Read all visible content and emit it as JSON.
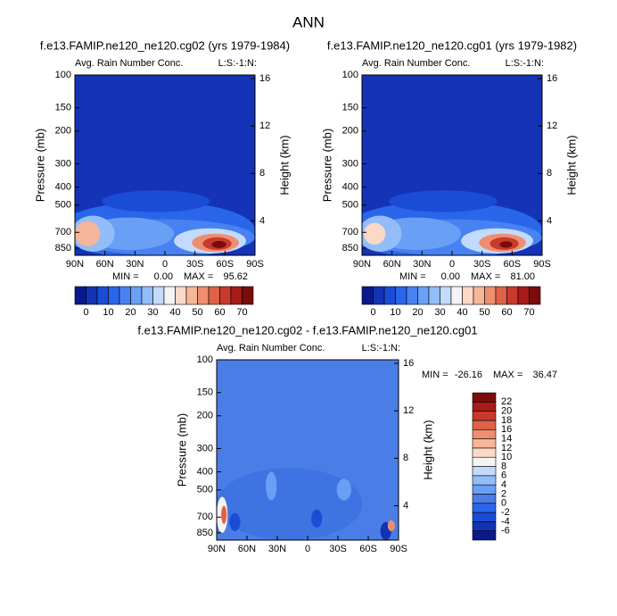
{
  "figure_title": "ANN",
  "chart_data": [
    {
      "type": "contour",
      "title": "f.e13.FAMIP.ne120_ne120.cg02 (yrs 1979-1984)",
      "subtitle": "Avg. Rain Number Conc.",
      "corner_label": "L:S:-1:N:",
      "ylabel": "Pressure (mb)",
      "y2label": "Height (km)",
      "ylog": true,
      "xlim": [
        90,
        -90
      ],
      "xticks": [
        {
          "value": 90,
          "label": "90N"
        },
        {
          "value": 60,
          "label": "60N"
        },
        {
          "value": 30,
          "label": "30N"
        },
        0,
        {
          "value": -30,
          "label": "30S"
        },
        {
          "value": -60,
          "label": "60S"
        },
        {
          "value": -90,
          "label": "90S"
        }
      ],
      "ylim": [
        930,
        100
      ],
      "yticks": [
        100,
        150,
        200,
        300,
        400,
        500,
        700,
        850
      ],
      "y2lim": [
        1.1,
        16.3
      ],
      "y2ticks": [
        4,
        8,
        12,
        16
      ],
      "min_label": "MIN =",
      "min": {
        "value": 0,
        "label": "0.00"
      },
      "max_label": "MAX =",
      "max": 95.62,
      "colorbar": {
        "levels": [
          0,
          5,
          10,
          15,
          20,
          25,
          30,
          35,
          40,
          45,
          50,
          55,
          60,
          65,
          70
        ],
        "ticks": [
          0,
          10,
          20,
          30,
          40,
          50,
          60,
          70
        ],
        "colors": [
          "#0a1a8c",
          "#1234b4",
          "#1a4cd6",
          "#2a66ea",
          "#4882f2",
          "#6a9ff6",
          "#93bdf8",
          "#c2dafb",
          "#f4f4f4",
          "#fbd9c6",
          "#f6b699",
          "#ee8e6f",
          "#df6148",
          "#c83a2c",
          "#a81b18",
          "#7a0c0c"
        ]
      }
    },
    {
      "type": "contour",
      "title": "f.e13.FAMIP.ne120_ne120.cg01 (yrs 1979-1982)",
      "subtitle": "Avg. Rain Number Conc.",
      "corner_label": "L:S:-1:N:",
      "ylabel": "Pressure (mb)",
      "y2label": "Height (km)",
      "ylog": true,
      "xlim": [
        90,
        -90
      ],
      "xticks": [
        {
          "value": 90,
          "label": "90N"
        },
        {
          "value": 60,
          "label": "60N"
        },
        {
          "value": 30,
          "label": "30N"
        },
        0,
        {
          "value": -30,
          "label": "30S"
        },
        {
          "value": -60,
          "label": "60S"
        },
        {
          "value": -90,
          "label": "90S"
        }
      ],
      "ylim": [
        930,
        100
      ],
      "yticks": [
        100,
        150,
        200,
        300,
        400,
        500,
        700,
        850
      ],
      "y2lim": [
        1.1,
        16.3
      ],
      "y2ticks": [
        4,
        8,
        12,
        16
      ],
      "min_label": "MIN =",
      "min": {
        "value": 0,
        "label": "0.00"
      },
      "max_label": "MAX =",
      "max": {
        "value": 81,
        "label": "81.00"
      },
      "colorbar": {
        "levels": [
          0,
          5,
          10,
          15,
          20,
          25,
          30,
          35,
          40,
          45,
          50,
          55,
          60,
          65,
          70
        ],
        "ticks": [
          0,
          10,
          20,
          30,
          40,
          50,
          60,
          70
        ],
        "colors": [
          "#0a1a8c",
          "#1234b4",
          "#1a4cd6",
          "#2a66ea",
          "#4882f2",
          "#6a9ff6",
          "#93bdf8",
          "#c2dafb",
          "#f4f4f4",
          "#fbd9c6",
          "#f6b699",
          "#ee8e6f",
          "#df6148",
          "#c83a2c",
          "#a81b18",
          "#7a0c0c"
        ]
      }
    },
    {
      "type": "contour",
      "title": "f.e13.FAMIP.ne120_ne120.cg02 - f.e13.FAMIP.ne120_ne120.cg01",
      "subtitle": "Avg. Rain Number Conc.",
      "corner_label": "L:S:-1:N:",
      "ylabel": "Pressure (mb)",
      "y2label": "Height (km)",
      "ylog": true,
      "xlim": [
        90,
        -90
      ],
      "xticks": [
        {
          "value": 90,
          "label": "90N"
        },
        {
          "value": 60,
          "label": "60N"
        },
        {
          "value": 30,
          "label": "30N"
        },
        0,
        {
          "value": -30,
          "label": "30S"
        },
        {
          "value": -60,
          "label": "60S"
        },
        {
          "value": -90,
          "label": "90S"
        }
      ],
      "ylim": [
        930,
        100
      ],
      "yticks": [
        100,
        150,
        200,
        300,
        400,
        500,
        700,
        850
      ],
      "y2lim": [
        1.1,
        16.3
      ],
      "y2ticks": [
        4,
        8,
        12,
        16
      ],
      "min_label": "MIN =",
      "min": -26.16,
      "max_label": "MAX =",
      "max": 36.47,
      "colorbar": {
        "levels": [
          -6,
          -4,
          -2,
          0,
          2,
          4,
          6,
          8,
          10,
          12,
          14,
          16,
          18,
          20,
          22
        ],
        "ticks": [
          -6,
          -4,
          -2,
          0,
          2,
          4,
          6,
          8,
          10,
          12,
          14,
          16,
          18,
          20,
          22
        ],
        "colors": [
          "#0a1a8c",
          "#1234b4",
          "#1a4cd6",
          "#2a66ea",
          "#4a7de6",
          "#6a9ff6",
          "#93bdf8",
          "#c2dafb",
          "#f4f4f4",
          "#fbd9c6",
          "#f6b699",
          "#ee8e6f",
          "#df6148",
          "#c83a2c",
          "#a81b18",
          "#7a0c0c"
        ]
      }
    }
  ]
}
